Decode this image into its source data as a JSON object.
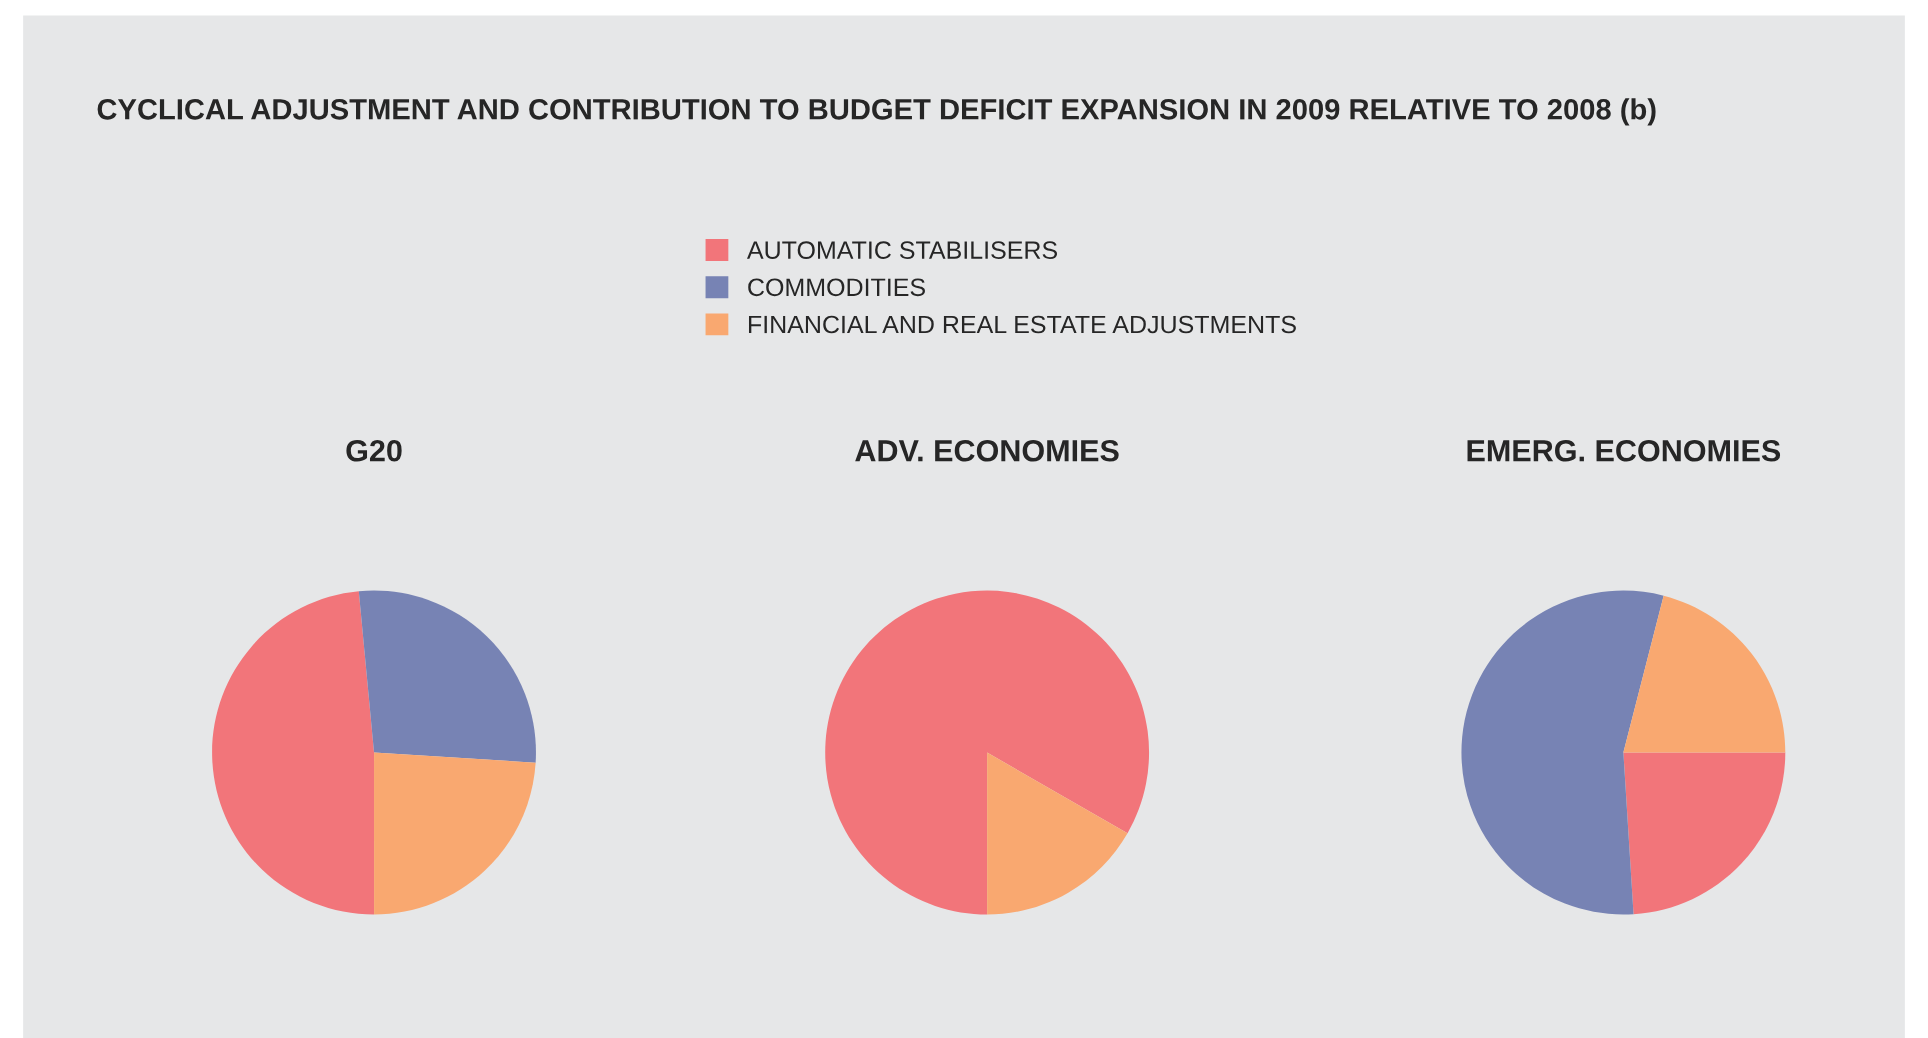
{
  "chart_data": [
    {
      "type": "pie",
      "title": "G20",
      "annotations": [
        "CYCLICAL ADJUSTMENT AND CONTRIBUTION TO BUDGET DEFICIT EXPANSION IN 2009 RELATIVE TO 2008 (b)"
      ],
      "legend": "top",
      "categories": [
        "AUTOMATIC STABILISERS",
        "COMMODITIES",
        "FINANCIAL AND REAL ESTATE ADJUSTMENTS"
      ],
      "values": [
        48.5,
        27.5,
        24
      ],
      "colors": [
        "#f2757a",
        "#7783b4",
        "#f9a870"
      ]
    },
    {
      "type": "pie",
      "title": "ADV. ECONOMIES",
      "values": [
        83.3,
        0,
        16.7
      ],
      "colors": [
        "#f2757a",
        "#7783b4",
        "#f9a870"
      ]
    },
    {
      "type": "pie",
      "title": "EMERG. ECONOMIES",
      "values": [
        24,
        55,
        21
      ],
      "colors": [
        "#f2757a",
        "#7783b4",
        "#f9a870"
      ]
    }
  ]
}
